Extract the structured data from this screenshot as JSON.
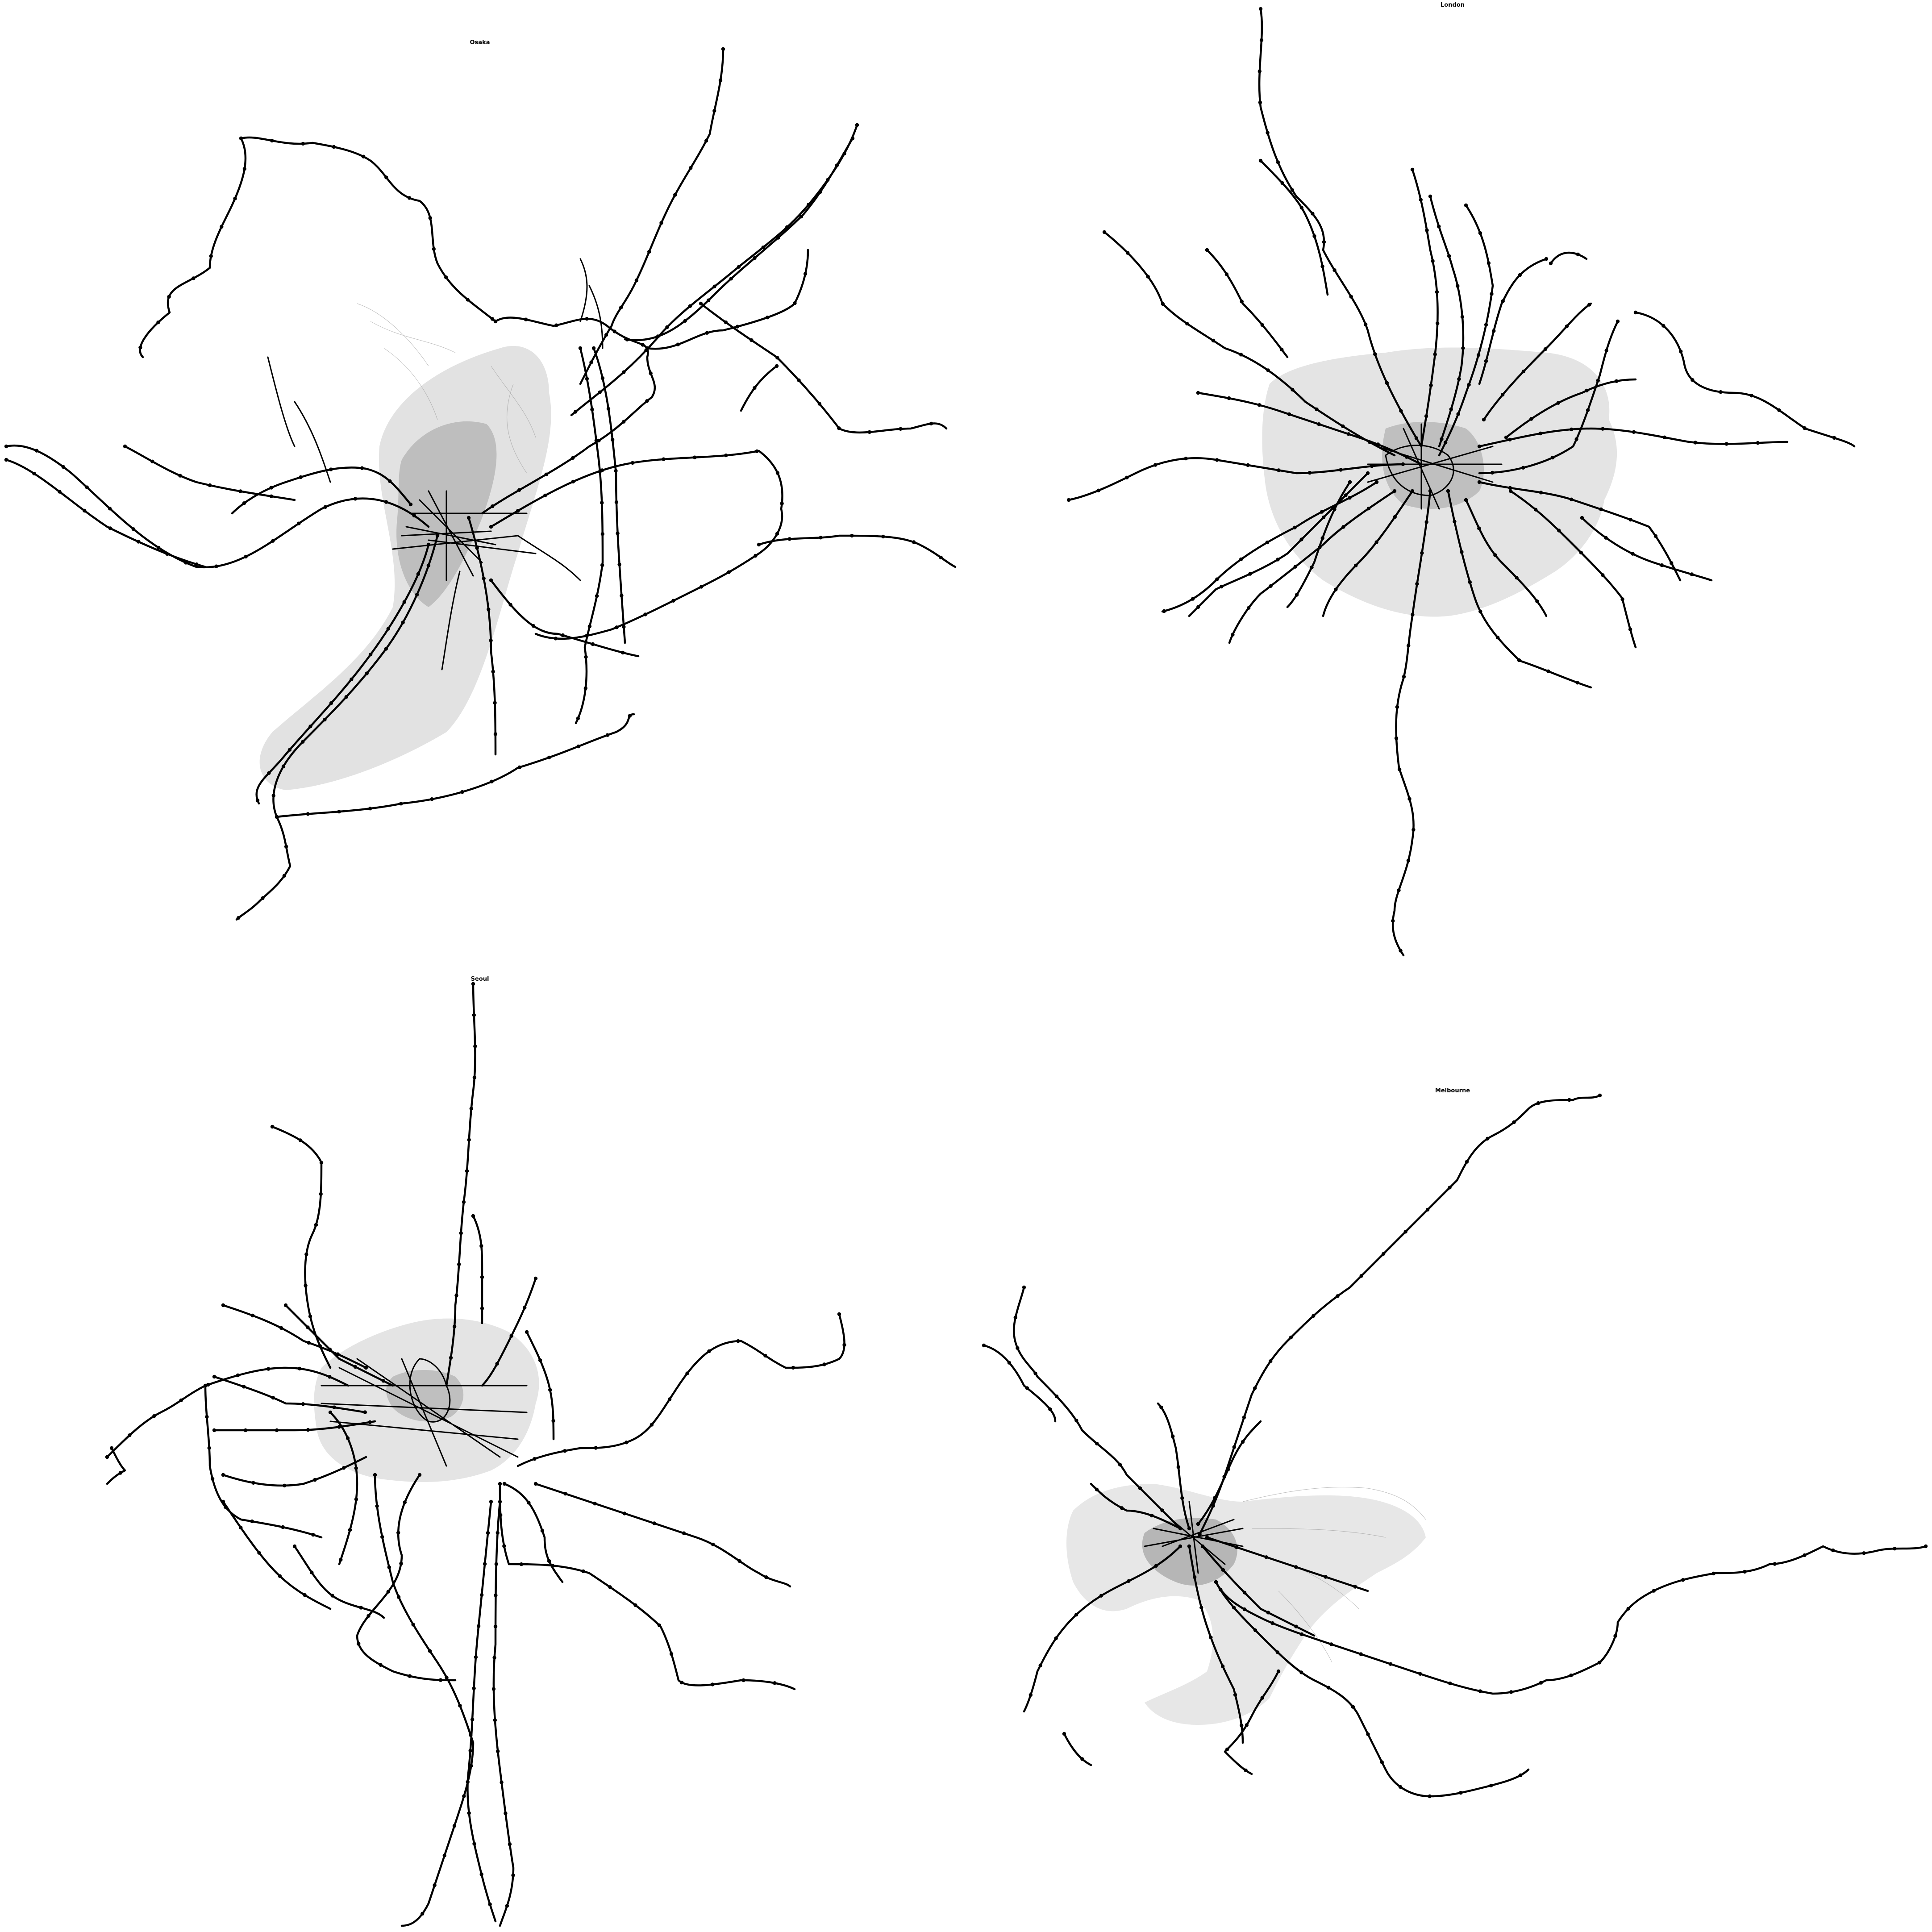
{
  "panels": [
    {
      "id": "osaka",
      "title": "Osaka"
    },
    {
      "id": "london",
      "title": "London"
    },
    {
      "id": "seoul",
      "title": "Seoul"
    },
    {
      "id": "melbourne",
      "title": "Melbourne"
    }
  ],
  "style": {
    "background": "#ffffff",
    "rail_color": "#000000",
    "street_color": "#8a8a8a"
  }
}
